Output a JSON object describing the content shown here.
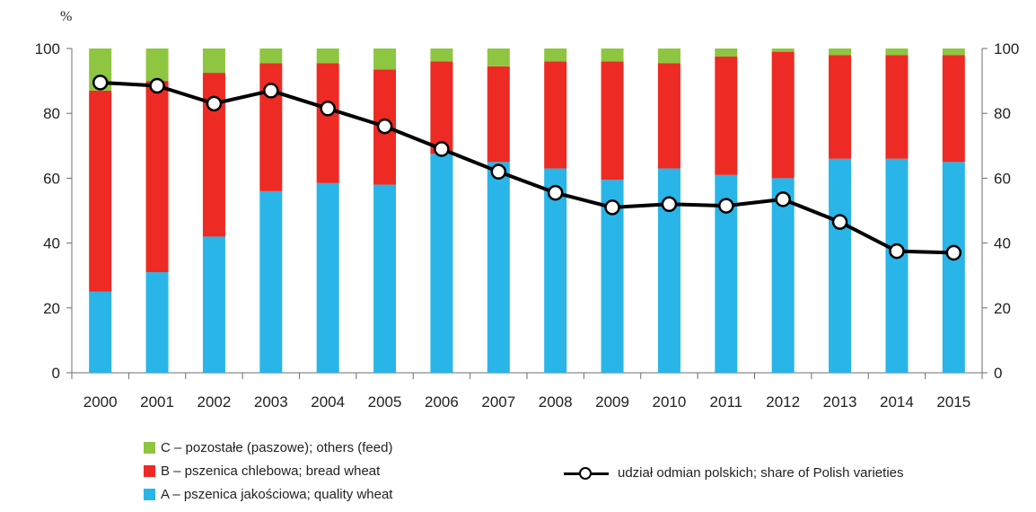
{
  "chart_data": {
    "type": "bar",
    "stacked": true,
    "y_unit_label": "%",
    "categories": [
      "2000",
      "2001",
      "2002",
      "2003",
      "2004",
      "2005",
      "2006",
      "2007",
      "2008",
      "2009",
      "2010",
      "2011",
      "2012",
      "2013",
      "2014",
      "2015"
    ],
    "ylim": [
      0,
      100
    ],
    "yticks": [
      0,
      20,
      40,
      60,
      80,
      100
    ],
    "grid": false,
    "secondary_y_axis": true,
    "series": [
      {
        "name": "A – pszenica jakościowa; quality wheat",
        "kind": "bar",
        "color": "#29b5e8",
        "values": [
          25,
          31,
          42,
          56,
          58.5,
          58,
          67.5,
          65,
          63,
          59.5,
          63,
          61,
          60,
          66,
          66,
          65
        ]
      },
      {
        "name": "B – pszenica chlebowa; bread wheat",
        "kind": "bar",
        "color": "#ee2a24",
        "values": [
          62,
          59,
          50.5,
          39.5,
          37,
          35.5,
          28.5,
          29.5,
          33,
          36.5,
          32.5,
          36.5,
          39,
          32,
          32,
          33
        ]
      },
      {
        "name": "C – pozostałe (paszowe); others (feed)",
        "kind": "bar",
        "color": "#8ec641",
        "values": [
          13,
          10,
          7.5,
          4.5,
          4.5,
          6.5,
          4,
          5.5,
          4,
          4,
          4.5,
          2.5,
          1,
          2,
          2,
          2
        ]
      },
      {
        "name": "udział odmian polskich; share of Polish varieties",
        "kind": "line",
        "color": "#000000",
        "values": [
          89.5,
          88.5,
          83,
          87,
          81.5,
          76,
          69,
          62,
          55.5,
          51,
          52,
          51.5,
          53.5,
          46.5,
          37.5,
          37
        ]
      }
    ]
  },
  "legend": {
    "c": "C – pozostałe (paszowe); others (feed)",
    "b": "B – pszenica chlebowa; bread wheat",
    "a": "A – pszenica jakościowa; quality wheat",
    "line": "udział odmian polskich; share of Polish varieties"
  }
}
